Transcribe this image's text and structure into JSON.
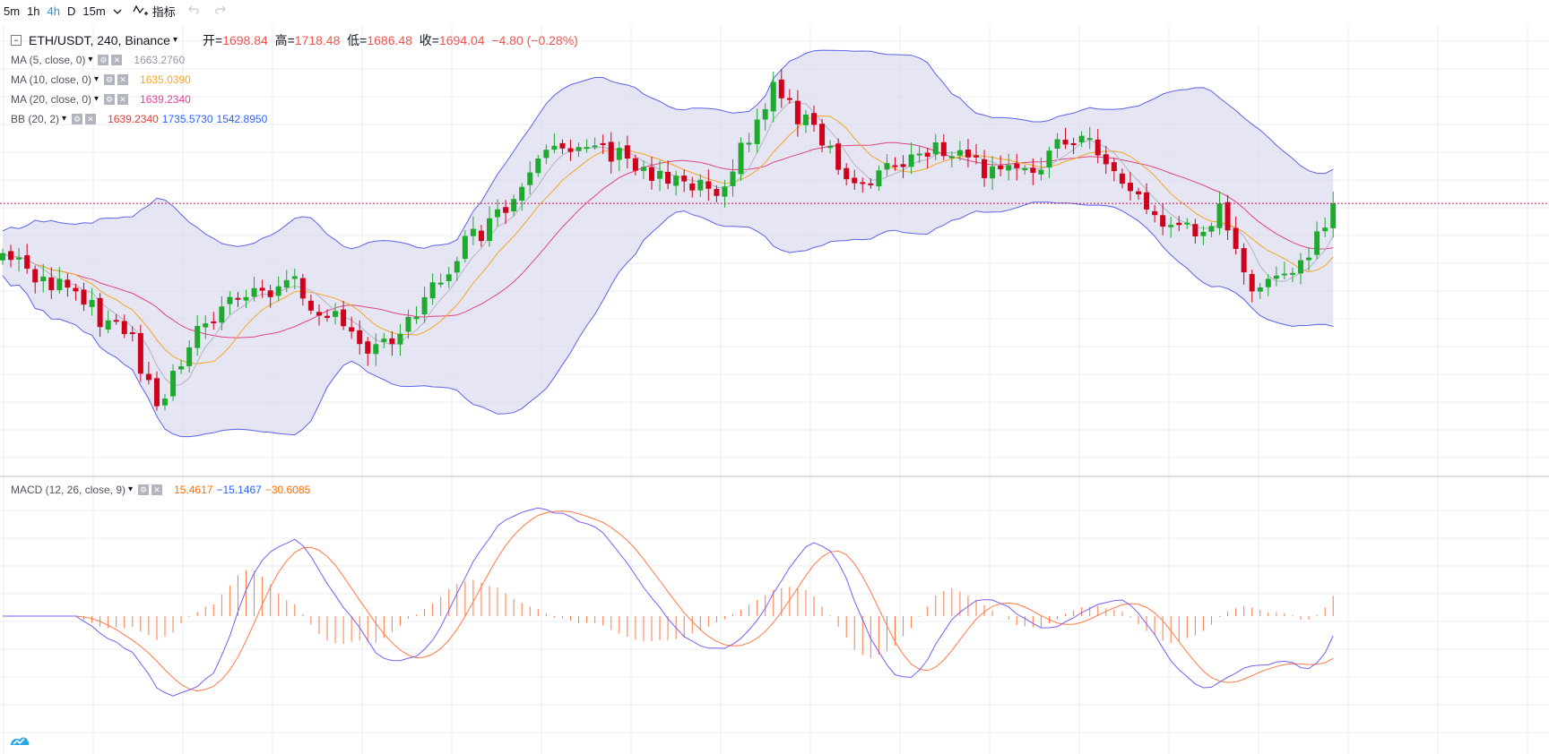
{
  "toolbar": {
    "timeframes": [
      {
        "label": "5m",
        "active": false
      },
      {
        "label": "1h",
        "active": false
      },
      {
        "label": "4h",
        "active": true
      },
      {
        "label": "D",
        "active": false
      },
      {
        "label": "15m",
        "active": false
      }
    ],
    "dropdown_icon": "chevron-down-icon",
    "indicators_label": "指标",
    "undo_icon": "undo-icon",
    "redo_icon": "redo-icon"
  },
  "legend": {
    "symbol": "ETH/USDT, 240, Binance",
    "open_label": "开=",
    "open": "1698.84",
    "high_label": "高=",
    "high": "1718.48",
    "low_label": "低=",
    "low": "1686.48",
    "close_label": "收=",
    "close": "1694.04",
    "change": "−4.80 (−0.28%)",
    "indicators": [
      {
        "label": "MA (5, close, 0)",
        "values": [
          "1663.2760"
        ],
        "colors": [
          "#9598a1"
        ]
      },
      {
        "label": "MA (10, close, 0)",
        "values": [
          "1635.0390"
        ],
        "colors": [
          "#f5a623"
        ]
      },
      {
        "label": "MA (20, close, 0)",
        "values": [
          "1639.2340"
        ],
        "colors": [
          "#e040a0"
        ]
      },
      {
        "label": "BB (20, 2)",
        "values": [
          "1639.2340",
          "1735.5730",
          "1542.8950"
        ],
        "colors": [
          "#e53935",
          "#2962ff",
          "#2962ff"
        ]
      }
    ],
    "macd": {
      "label": "MACD (12, 26, close, 9)",
      "values": [
        "15.4617",
        "−15.1467",
        "−30.6085"
      ],
      "colors": [
        "#ff6d00",
        "#2962ff",
        "#ff6d00"
      ]
    }
  },
  "colors": {
    "up": "#26a69a",
    "up_candle": "#1fa92f",
    "down_candle": "#d0021b",
    "bb_line": "#5b64e8",
    "bb_fill": "#dcdcf0",
    "ma5": "#b2b5be",
    "ma10": "#f5a623",
    "ma20": "#e0457b",
    "macd_line": "#7b5cf5",
    "signal_line": "#ff7a45",
    "hist": "#ff7a45",
    "price_line": "#c2185b",
    "grid": "#e8eef2"
  },
  "logo_icon": "tradingview-logo-icon"
}
